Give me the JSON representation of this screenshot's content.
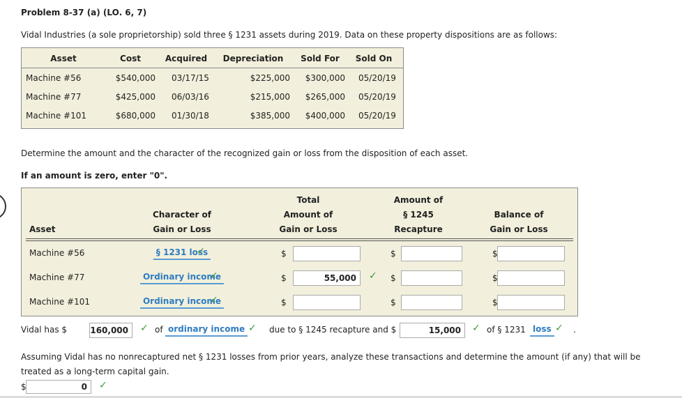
{
  "title": "Problem 8-37 (a) (LO. 6, 7)",
  "intro": "Vidal Industries (a sole proprietorship) sold three § 1231 assets during 2019. Data on these property dispositions are as follows:",
  "data_table": {
    "headers": [
      "Asset",
      "Cost",
      "Acquired",
      "Depreciation",
      "Sold For",
      "Sold On"
    ],
    "rows": [
      [
        "Machine #56",
        "$540,000",
        "03/17/15",
        "$225,000",
        "$300,000",
        "05/20/19"
      ],
      [
        "Machine #77",
        "$425,000",
        "06/03/16",
        "$215,000",
        "$265,000",
        "05/20/19"
      ],
      [
        "Machine #101",
        "$680,000",
        "01/30/18",
        "$385,000",
        "$400,000",
        "05/20/19"
      ]
    ]
  },
  "instruction": "Determine the amount and the character of the recognized gain or loss from the disposition of each asset.",
  "note": "If an amount is zero, enter \"0\".",
  "currency": "$",
  "answer_table": {
    "headers": [
      [
        "Asset"
      ],
      [
        "Character of",
        "Gain or Loss"
      ],
      [
        "Total",
        "Amount of",
        "Gain or Loss"
      ],
      [
        "Amount of",
        "§ 1245",
        "Recapture"
      ],
      [
        "Balance of",
        "Gain or Loss"
      ]
    ],
    "rows": [
      {
        "asset": "Machine #56",
        "character": "§ 1231 loss"
      },
      {
        "asset": "Machine #77",
        "character": "Ordinary income",
        "total": "55,000"
      },
      {
        "asset": "Machine #101",
        "character": "Ordinary income"
      }
    ]
  },
  "summary": {
    "parts": [
      "Vidal has $",
      "of",
      "due to § 1245 recapture and $",
      "of § 1231",
      "."
    ],
    "ordinary_amount": "160,000",
    "ordinary_character": "ordinary income",
    "section_1231_amount": "15,000",
    "section_1231_character": "loss"
  },
  "question": "Assuming Vidal has no nonrecaptured net § 1231 losses from prior years, analyze these transactions and determine the amount (if any) that will be treated as a long-term capital gain.",
  "answer": "0"
}
